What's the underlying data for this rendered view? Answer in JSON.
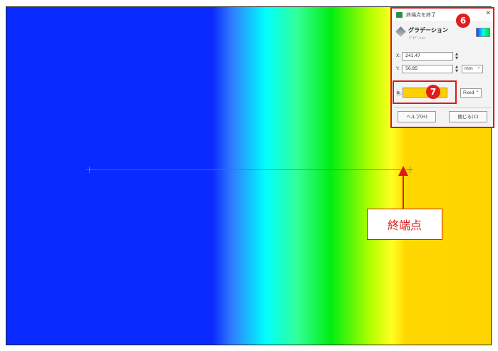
{
  "dialog": {
    "title": "終端点を終了",
    "close_glyph": "✕",
    "tool_name": "グラデーション",
    "tool_subtitle": "ｸﾞﾗﾃﾞｰｼｮﾝ",
    "x_label": "X:",
    "x_value": "241.47",
    "y_label": "Y:",
    "y_value": "56.85",
    "unit": "mm",
    "color_label": "色:",
    "color_value": "#ffd000",
    "mode": "Fixed",
    "help_button": "ヘルプ(H)",
    "close_button": "閉じる(C)"
  },
  "badges": {
    "dialog": "6",
    "color": "7"
  },
  "callout": {
    "label": "終端点"
  },
  "icons": [
    "app-icon",
    "close-icon",
    "gradient-tool-icon",
    "gradient-preview-icon",
    "spinner-icon",
    "arrow-up-icon",
    "point-marker-icon"
  ],
  "colors": {
    "annotation_red": "#e01818",
    "gradient_start": "#0a2bff",
    "gradient_end": "#ffd400"
  }
}
